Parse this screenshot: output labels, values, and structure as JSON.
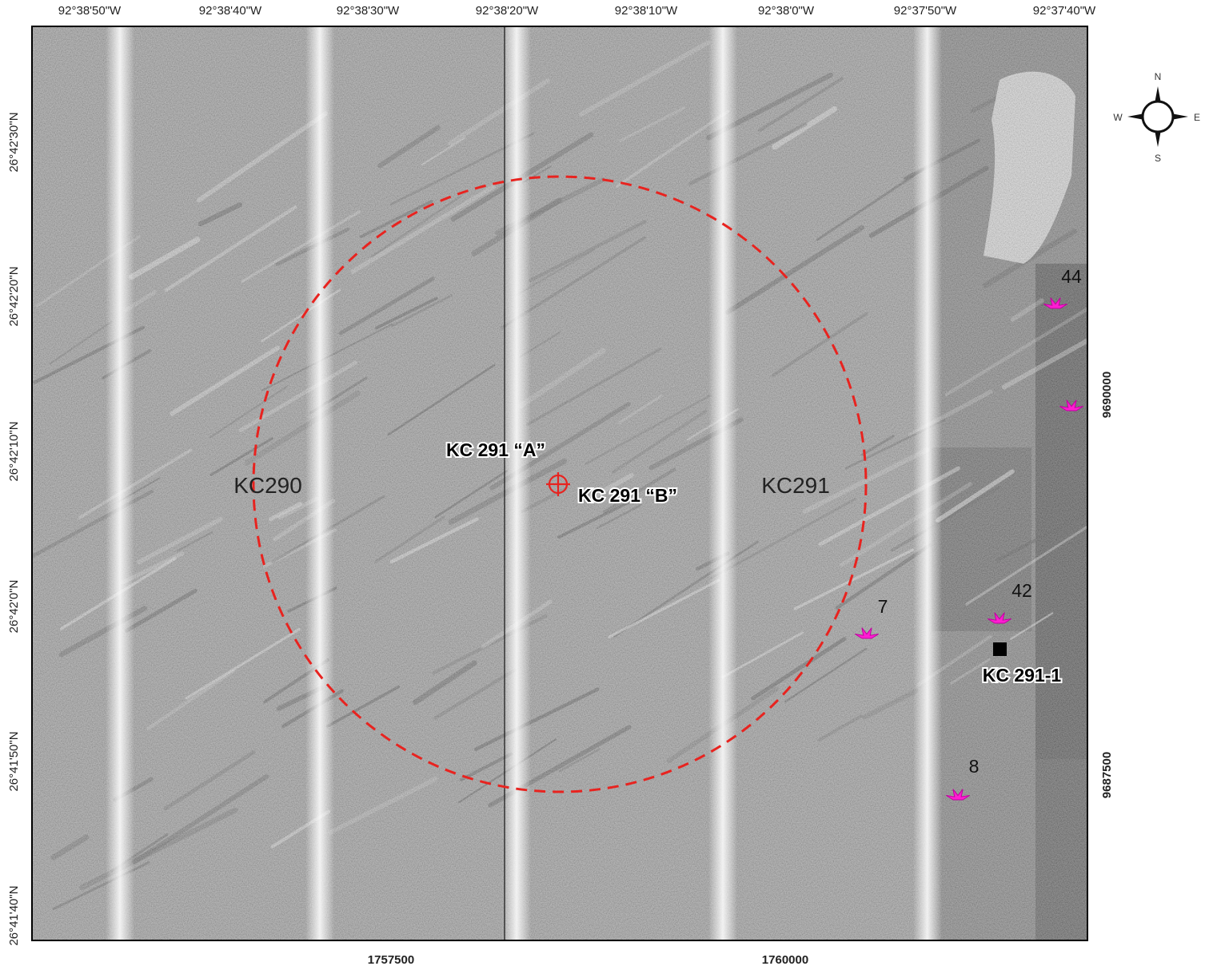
{
  "map": {
    "longitude_labels": [
      "92°38'50\"W",
      "92°38'40\"W",
      "92°38'30\"W",
      "92°38'20\"W",
      "92°38'10\"W",
      "92°38'0\"W",
      "92°37'50\"W",
      "92°37'40\"W"
    ],
    "latitude_labels": [
      "26°42'30\"N",
      "26°42'20\"N",
      "26°42'10\"N",
      "26°42'0\"N",
      "26°41'50\"N",
      "26°41'40\"N"
    ],
    "easting_labels": [
      "1757500",
      "1760000"
    ],
    "northing_labels": [
      "9690000",
      "9687500"
    ],
    "compass": {
      "north": "N",
      "south": "S",
      "west": "W",
      "east": "E"
    },
    "block_labels": [
      "KC290",
      "KC291"
    ],
    "site_labels": [
      "KC 291 “A”",
      "KC 291 “B”",
      "KC 291-1"
    ],
    "feature_labels": [
      "7",
      "42",
      "8",
      "44"
    ]
  }
}
